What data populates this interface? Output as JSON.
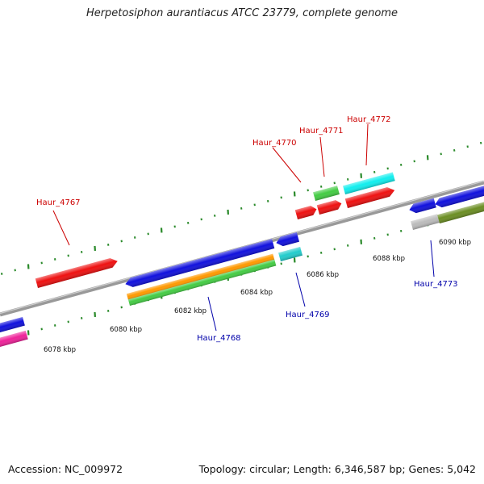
{
  "title": "Herpetosiphon aurantiacus ATCC 23779, complete genome",
  "accession": "Accession: NC_009972",
  "summary": "Topology: circular; Length: 6,346,587 bp; Genes: 5,042",
  "colors": {
    "backbone": "#888888",
    "tick": "#2a8a2a",
    "label_forward": "#cc0000",
    "label_reverse": "#0000aa"
  },
  "kbp_labels": [
    "6078 kbp",
    "6080 kbp",
    "6082 kbp",
    "6084 kbp",
    "6086 kbp",
    "6088 kbp",
    "6090 kbp"
  ],
  "gene_labels": {
    "forward": [
      "Haur_4767",
      "Haur_4770",
      "Haur_4771",
      "Haur_4772"
    ],
    "reverse": [
      "Haur_4768",
      "Haur_4769",
      "Haur_4773"
    ]
  }
}
